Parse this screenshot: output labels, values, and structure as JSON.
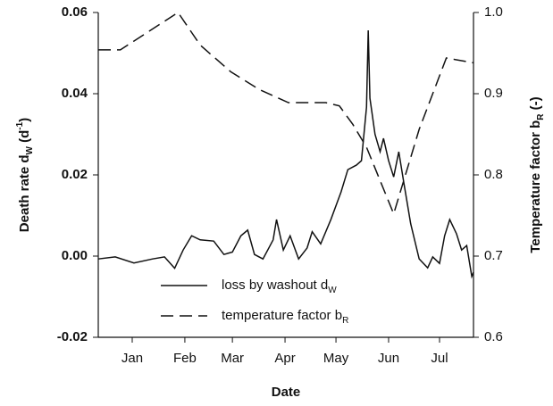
{
  "chart_data": {
    "type": "line",
    "x_label": "Date",
    "y_label": [
      {
        "text": "Death rate d"
      },
      {
        "text": "W",
        "sub": true
      },
      {
        "text": "  (d"
      },
      {
        "text": "-1",
        "sup": true
      },
      {
        "text": ")"
      }
    ],
    "y2_label": [
      {
        "text": "Temperature factor b"
      },
      {
        "text": "R",
        "sub": true
      },
      {
        "text": " (-)"
      }
    ],
    "xlim": [
      -5,
      216
    ],
    "xticks": [
      {
        "value": 15,
        "label": "Jan"
      },
      {
        "value": 46,
        "label": "Feb"
      },
      {
        "value": 74,
        "label": "Mar"
      },
      {
        "value": 105,
        "label": "Apr"
      },
      {
        "value": 135,
        "label": "May"
      },
      {
        "value": 166,
        "label": "Jun"
      },
      {
        "value": 196,
        "label": "Jul"
      }
    ],
    "ylim": [
      -0.02,
      0.06
    ],
    "yticks": [
      -0.02,
      {
        "value": 0,
        "label": "0.00"
      },
      0.02,
      0.04,
      0.06
    ],
    "y2lim": [
      0.6,
      1.0
    ],
    "y2ticks": [
      0.6,
      0.7,
      0.8,
      0.9,
      {
        "value": 1.0,
        "label": "1.0"
      }
    ],
    "legend": "lower left",
    "series": [
      {
        "name": [
          {
            "text": "loss by washout d"
          },
          {
            "text": "W",
            "sub": true
          }
        ],
        "color": "#111111",
        "dash": "solid",
        "x": [
          -5,
          5,
          16,
          27,
          34,
          40,
          45,
          50,
          55,
          63,
          69,
          74,
          79,
          83,
          87,
          92,
          98,
          100,
          104,
          108,
          113,
          118,
          121,
          126,
          132,
          138,
          142,
          147,
          150,
          153,
          154,
          155,
          158,
          161,
          163,
          166,
          169,
          172,
          175,
          179,
          184,
          189,
          192,
          196,
          199,
          202,
          206,
          209,
          212,
          215,
          216
        ],
        "values": [
          -0.0007,
          -0.0002,
          -0.0017,
          -0.0007,
          -0.0002,
          -0.003,
          0.0015,
          0.005,
          0.004,
          0.0037,
          0.0004,
          0.001,
          0.005,
          0.0064,
          0.0004,
          -0.0007,
          0.004,
          0.009,
          0.0015,
          0.005,
          -0.0007,
          0.002,
          0.006,
          0.003,
          0.009,
          0.0158,
          0.0213,
          0.0224,
          0.0235,
          0.0367,
          0.0556,
          0.0389,
          0.03,
          0.0257,
          0.029,
          0.0235,
          0.0195,
          0.0257,
          0.018,
          0.008,
          -0.0007,
          -0.0029,
          -0.0002,
          -0.0018,
          0.005,
          0.009,
          0.0055,
          0.0015,
          0.0026,
          -0.005,
          -0.004
        ]
      },
      {
        "name": [
          {
            "text": "temperature factor b"
          },
          {
            "text": "R",
            "sub": true
          }
        ],
        "color": "#111111",
        "dash": "dashed",
        "axis": "y2",
        "x": [
          -5,
          8,
          42,
          55,
          73,
          90,
          107,
          129,
          137,
          145,
          153,
          169,
          184,
          200,
          216
        ],
        "values": [
          0.954,
          0.954,
          1.0,
          0.96,
          0.927,
          0.905,
          0.889,
          0.889,
          0.885,
          0.862,
          0.834,
          0.752,
          0.856,
          0.944,
          0.938
        ]
      }
    ]
  }
}
